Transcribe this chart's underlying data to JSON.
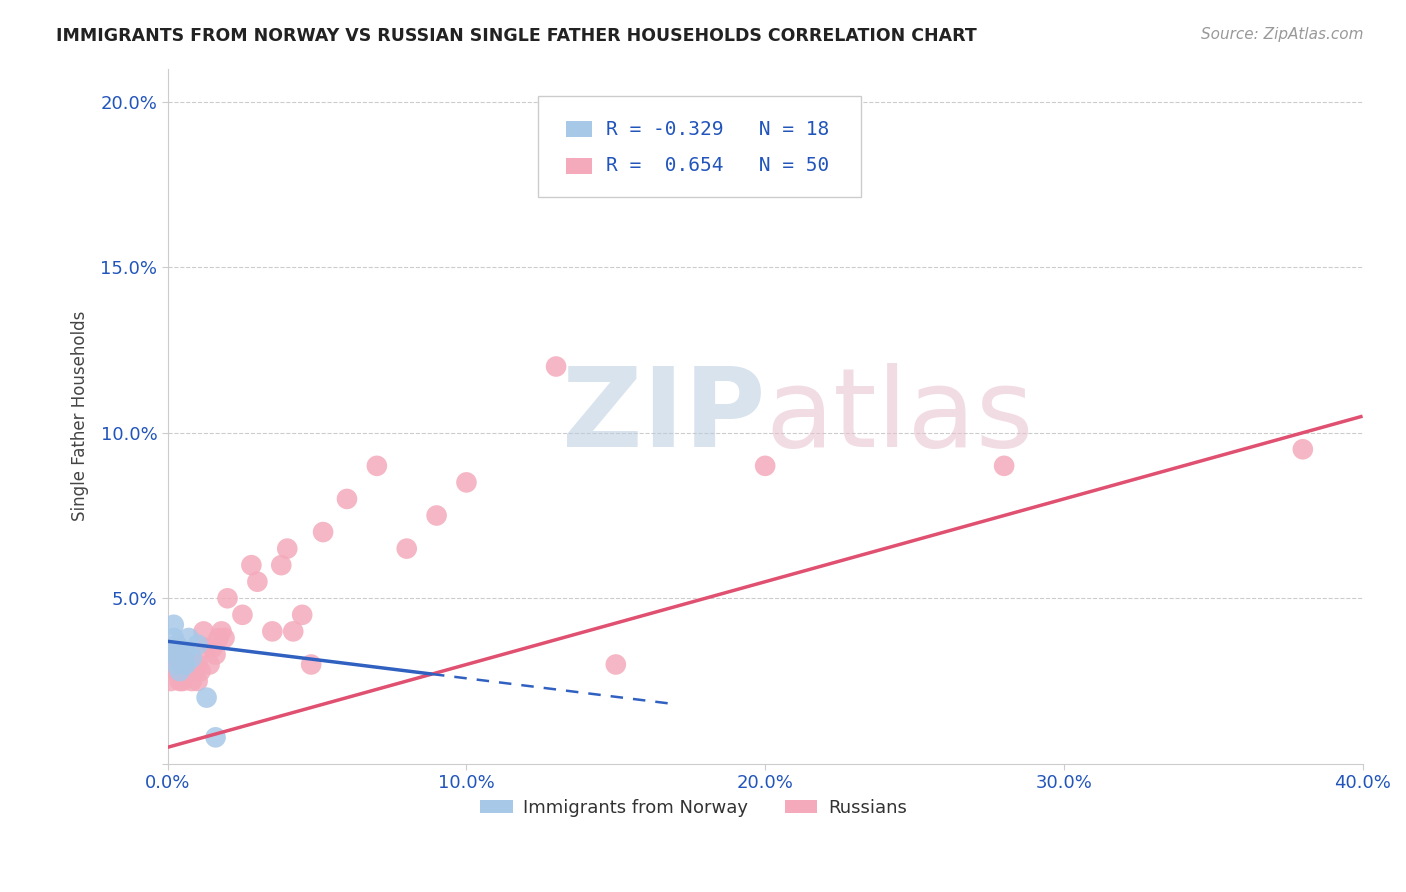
{
  "title": "IMMIGRANTS FROM NORWAY VS RUSSIAN SINGLE FATHER HOUSEHOLDS CORRELATION CHART",
  "source": "Source: ZipAtlas.com",
  "ylabel": "Single Father Households",
  "xlim": [
    0.0,
    0.4
  ],
  "ylim": [
    0.0,
    0.21
  ],
  "x_ticks": [
    0.0,
    0.1,
    0.2,
    0.3,
    0.4
  ],
  "x_tick_labels": [
    "0.0%",
    "10.0%",
    "20.0%",
    "30.0%",
    "40.0%"
  ],
  "y_ticks": [
    0.0,
    0.05,
    0.1,
    0.15,
    0.2
  ],
  "y_tick_labels": [
    "",
    "5.0%",
    "10.0%",
    "15.0%",
    "20.0%"
  ],
  "norway_color": "#a8c8e8",
  "russia_color": "#f4aabb",
  "trend_norway_color": "#3060c0",
  "trend_russia_color": "#e05070",
  "background_color": "#ffffff",
  "norway_x": [
    0.001,
    0.002,
    0.002,
    0.003,
    0.003,
    0.003,
    0.004,
    0.004,
    0.004,
    0.005,
    0.005,
    0.006,
    0.006,
    0.007,
    0.008,
    0.01,
    0.013,
    0.016
  ],
  "norway_y": [
    0.034,
    0.038,
    0.042,
    0.03,
    0.033,
    0.036,
    0.028,
    0.032,
    0.035,
    0.03,
    0.033,
    0.03,
    0.034,
    0.038,
    0.032,
    0.036,
    0.02,
    0.008
  ],
  "russia_x": [
    0.001,
    0.001,
    0.002,
    0.002,
    0.003,
    0.003,
    0.003,
    0.004,
    0.004,
    0.005,
    0.005,
    0.005,
    0.006,
    0.006,
    0.007,
    0.008,
    0.008,
    0.009,
    0.01,
    0.01,
    0.011,
    0.012,
    0.013,
    0.014,
    0.015,
    0.016,
    0.017,
    0.018,
    0.019,
    0.02,
    0.025,
    0.028,
    0.03,
    0.035,
    0.038,
    0.04,
    0.042,
    0.045,
    0.048,
    0.052,
    0.06,
    0.07,
    0.08,
    0.09,
    0.1,
    0.13,
    0.15,
    0.2,
    0.28,
    0.38
  ],
  "russia_y": [
    0.025,
    0.033,
    0.03,
    0.032,
    0.028,
    0.03,
    0.033,
    0.025,
    0.03,
    0.025,
    0.028,
    0.032,
    0.028,
    0.03,
    0.03,
    0.025,
    0.03,
    0.028,
    0.025,
    0.03,
    0.028,
    0.04,
    0.035,
    0.03,
    0.035,
    0.033,
    0.038,
    0.04,
    0.038,
    0.05,
    0.045,
    0.06,
    0.055,
    0.04,
    0.06,
    0.065,
    0.04,
    0.045,
    0.03,
    0.07,
    0.08,
    0.09,
    0.065,
    0.075,
    0.085,
    0.12,
    0.03,
    0.09,
    0.09,
    0.095
  ],
  "trend_russia_x0": 0.0,
  "trend_russia_y0": 0.005,
  "trend_russia_x1": 0.4,
  "trend_russia_y1": 0.105,
  "trend_norway_x0": 0.0,
  "trend_norway_y0": 0.037,
  "trend_norway_x1": 0.17,
  "trend_norway_y1": 0.018,
  "norway_R": "-0.329",
  "norway_N": "18",
  "russia_R": "0.654",
  "russia_N": "50"
}
